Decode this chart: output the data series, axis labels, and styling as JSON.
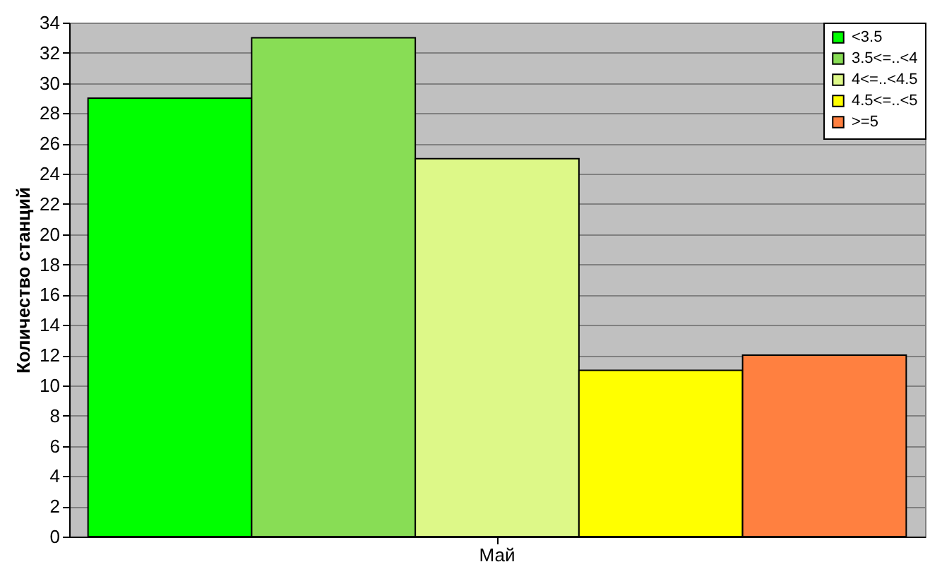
{
  "chart_data": {
    "type": "bar",
    "ylabel": "Количество станций",
    "categories": [
      "Май"
    ],
    "series": [
      {
        "name": "<3.5",
        "color": "#00ff00",
        "values": [
          29
        ]
      },
      {
        "name": "3.5<=..<4",
        "color": "#88dd55",
        "values": [
          33
        ]
      },
      {
        "name": "4<=..<4.5",
        "color": "#ddf888",
        "values": [
          25
        ]
      },
      {
        "name": "4.5<=..<5",
        "color": "#ffff00",
        "values": [
          11
        ]
      },
      {
        "name": ">=5",
        "color": "#ff8040",
        "values": [
          12
        ]
      }
    ],
    "ylim": [
      0,
      34
    ],
    "yticks": [
      0,
      2,
      4,
      6,
      8,
      10,
      12,
      14,
      16,
      18,
      20,
      22,
      24,
      26,
      28,
      30,
      32,
      34
    ],
    "grid": "y",
    "legend": "top right"
  }
}
